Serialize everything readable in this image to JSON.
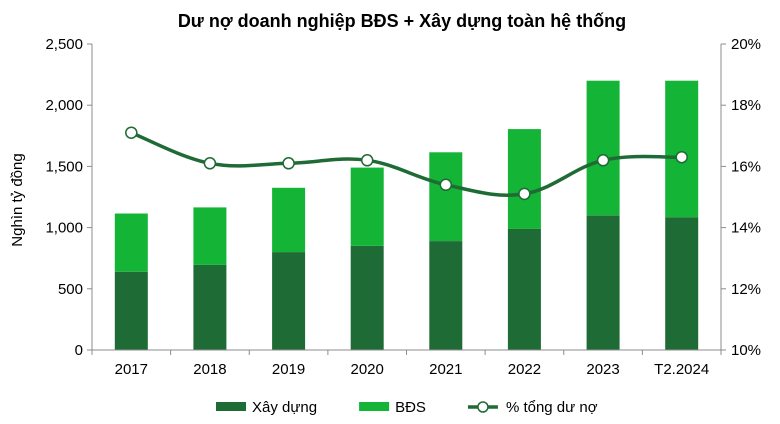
{
  "chart_data": {
    "type": "bar",
    "stacked": true,
    "title": "Dư nợ doanh nghiệp BĐS + Xây dựng toàn hệ thống",
    "ylabel": "Nghìn tỷ đồng",
    "categories": [
      "2017",
      "2018",
      "2019",
      "2020",
      "2021",
      "2022",
      "2023",
      "T2.2024"
    ],
    "ylim": [
      0,
      2500
    ],
    "yticks": [
      0,
      500,
      1000,
      1500,
      2000,
      2500
    ],
    "ytick_labels": [
      "0",
      "500",
      "1,000",
      "1,500",
      "2,000",
      "2,500"
    ],
    "y2lim": [
      10,
      20
    ],
    "y2ticks": [
      10,
      12,
      14,
      16,
      18,
      20
    ],
    "y2tick_labels": [
      "10%",
      "12%",
      "14%",
      "16%",
      "18%",
      "20%"
    ],
    "grid": false,
    "legend_position": "bottom",
    "series": [
      {
        "name": "Xây dựng",
        "type": "bar",
        "color": "#1e6b35",
        "values": [
          640,
          695,
          800,
          850,
          890,
          990,
          1100,
          1085
        ]
      },
      {
        "name": "BĐS",
        "type": "bar",
        "color": "#14b436",
        "values": [
          475,
          470,
          525,
          640,
          725,
          815,
          1100,
          1115
        ]
      },
      {
        "name": "% tổng dư nợ",
        "type": "line",
        "axis": "right",
        "color": "#1e6b35",
        "marker": "circle",
        "values": [
          17.1,
          16.1,
          16.1,
          16.2,
          15.4,
          15.1,
          16.2,
          16.3
        ]
      }
    ]
  }
}
